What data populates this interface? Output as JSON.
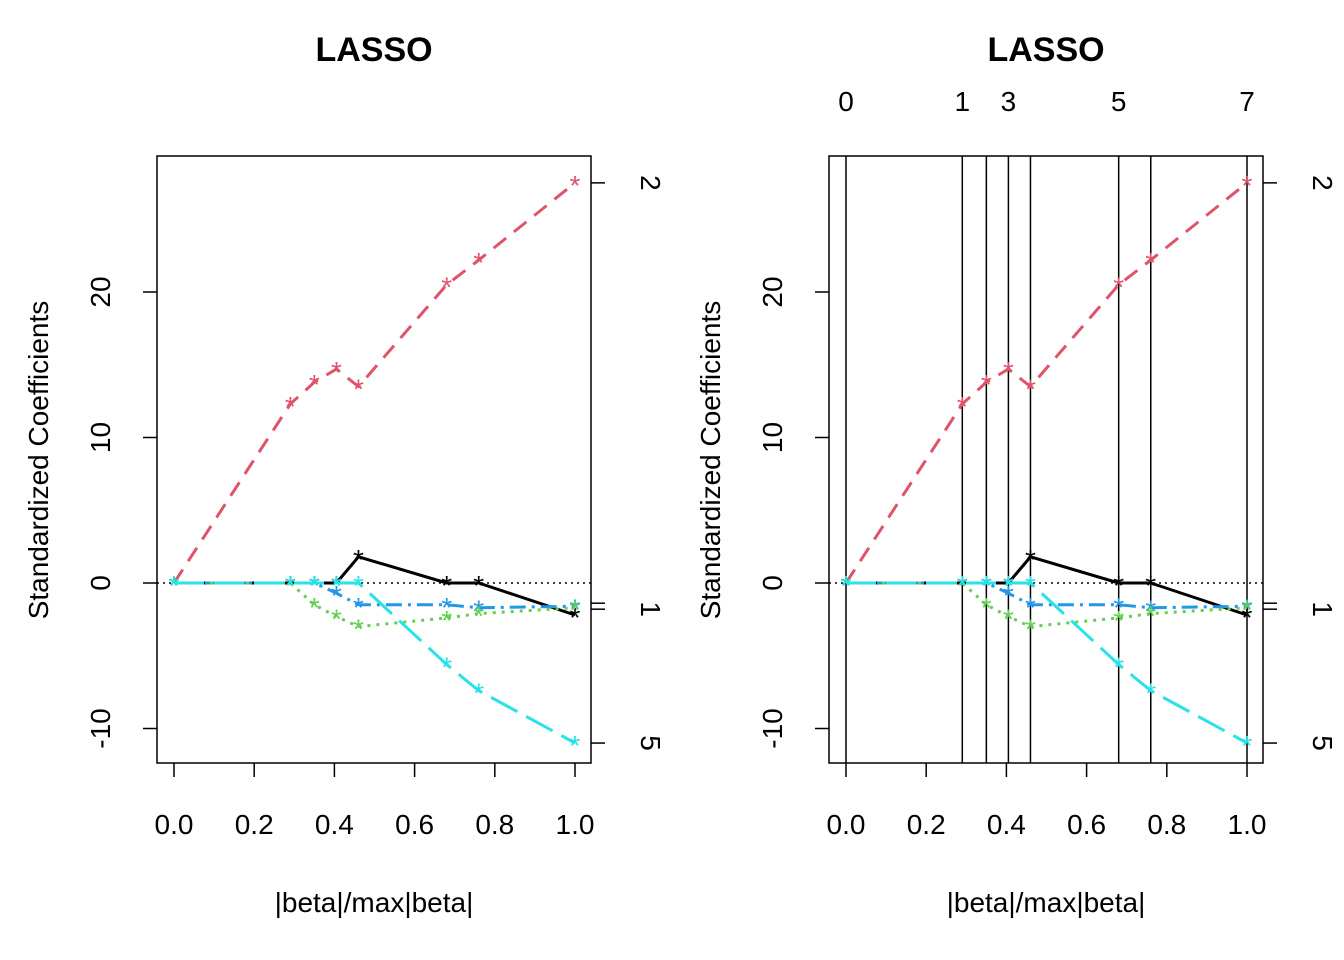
{
  "chart_data": [
    {
      "type": "line",
      "title": "LASSO",
      "xlabel": "|beta|/max|beta|",
      "ylabel": "Standardized Coefficients",
      "xlim": [
        0,
        1
      ],
      "ylim": [
        -12,
        29
      ],
      "x_ticks": [
        "0.0",
        "0.2",
        "0.4",
        "0.6",
        "0.8",
        "1.0"
      ],
      "y_ticks": [
        "-10",
        "0",
        "10",
        "20"
      ],
      "right_axis_labels": [
        {
          "label": "2",
          "y": 27.5
        },
        {
          "label": "1",
          "y": -1.8
        },
        {
          "label": "5",
          "y": -11.0
        }
      ],
      "zero_line": true,
      "step_lines": false,
      "step_labels": [],
      "steps_x": [
        0.0,
        0.29,
        0.35,
        0.405,
        0.46,
        0.68,
        0.76,
        1.0
      ],
      "series": [
        {
          "color": "#DF536B",
          "dash": "16,10",
          "y": [
            0.0,
            12.3,
            13.8,
            14.7,
            13.5,
            20.5,
            22.2,
            27.5
          ]
        },
        {
          "color": "#000000",
          "dash": "none",
          "y": [
            0.0,
            0.0,
            0.0,
            0.0,
            1.8,
            0.0,
            0.0,
            -2.2
          ]
        },
        {
          "color": "#2297E6",
          "dash": "16,6,3,6",
          "y": [
            0.0,
            0.0,
            0.0,
            -0.7,
            -1.5,
            -1.5,
            -1.7,
            -1.6
          ]
        },
        {
          "color": "#61D04F",
          "dash": "3,6",
          "y": [
            0.0,
            0.0,
            -1.5,
            -2.3,
            -3.0,
            -2.4,
            -2.1,
            -1.7
          ]
        },
        {
          "color": "#28E2E5",
          "dash": "30,10",
          "y": [
            0.0,
            0.0,
            0.0,
            0.0,
            0.0,
            -5.6,
            -7.4,
            -11.0
          ]
        }
      ]
    },
    {
      "type": "line",
      "title": "LASSO",
      "xlabel": "|beta|/max|beta|",
      "ylabel": "Standardized Coefficients",
      "xlim": [
        0,
        1
      ],
      "ylim": [
        -12,
        29
      ],
      "x_ticks": [
        "0.0",
        "0.2",
        "0.4",
        "0.6",
        "0.8",
        "1.0"
      ],
      "y_ticks": [
        "-10",
        "0",
        "10",
        "20"
      ],
      "right_axis_labels": [
        {
          "label": "2",
          "y": 27.5
        },
        {
          "label": "1",
          "y": -1.8
        },
        {
          "label": "5",
          "y": -11.0
        }
      ],
      "zero_line": true,
      "step_lines": true,
      "step_labels": [
        {
          "label": "0",
          "x": 0.0
        },
        {
          "label": "1",
          "x": 0.29
        },
        {
          "label": "3",
          "x": 0.405
        },
        {
          "label": "5",
          "x": 0.68
        },
        {
          "label": "7",
          "x": 1.0
        }
      ],
      "steps_x": [
        0.0,
        0.29,
        0.35,
        0.405,
        0.46,
        0.68,
        0.76,
        1.0
      ],
      "series": [
        {
          "color": "#DF536B",
          "dash": "16,10",
          "y": [
            0.0,
            12.3,
            13.8,
            14.7,
            13.5,
            20.5,
            22.2,
            27.5
          ]
        },
        {
          "color": "#000000",
          "dash": "none",
          "y": [
            0.0,
            0.0,
            0.0,
            0.0,
            1.8,
            0.0,
            0.0,
            -2.2
          ]
        },
        {
          "color": "#2297E6",
          "dash": "16,6,3,6",
          "y": [
            0.0,
            0.0,
            0.0,
            -0.7,
            -1.5,
            -1.5,
            -1.7,
            -1.6
          ]
        },
        {
          "color": "#61D04F",
          "dash": "3,6",
          "y": [
            0.0,
            0.0,
            -1.5,
            -2.3,
            -3.0,
            -2.4,
            -2.1,
            -1.7
          ]
        },
        {
          "color": "#28E2E5",
          "dash": "30,10",
          "y": [
            0.0,
            0.0,
            0.0,
            0.0,
            0.0,
            -5.6,
            -7.4,
            -11.0
          ]
        }
      ]
    }
  ]
}
